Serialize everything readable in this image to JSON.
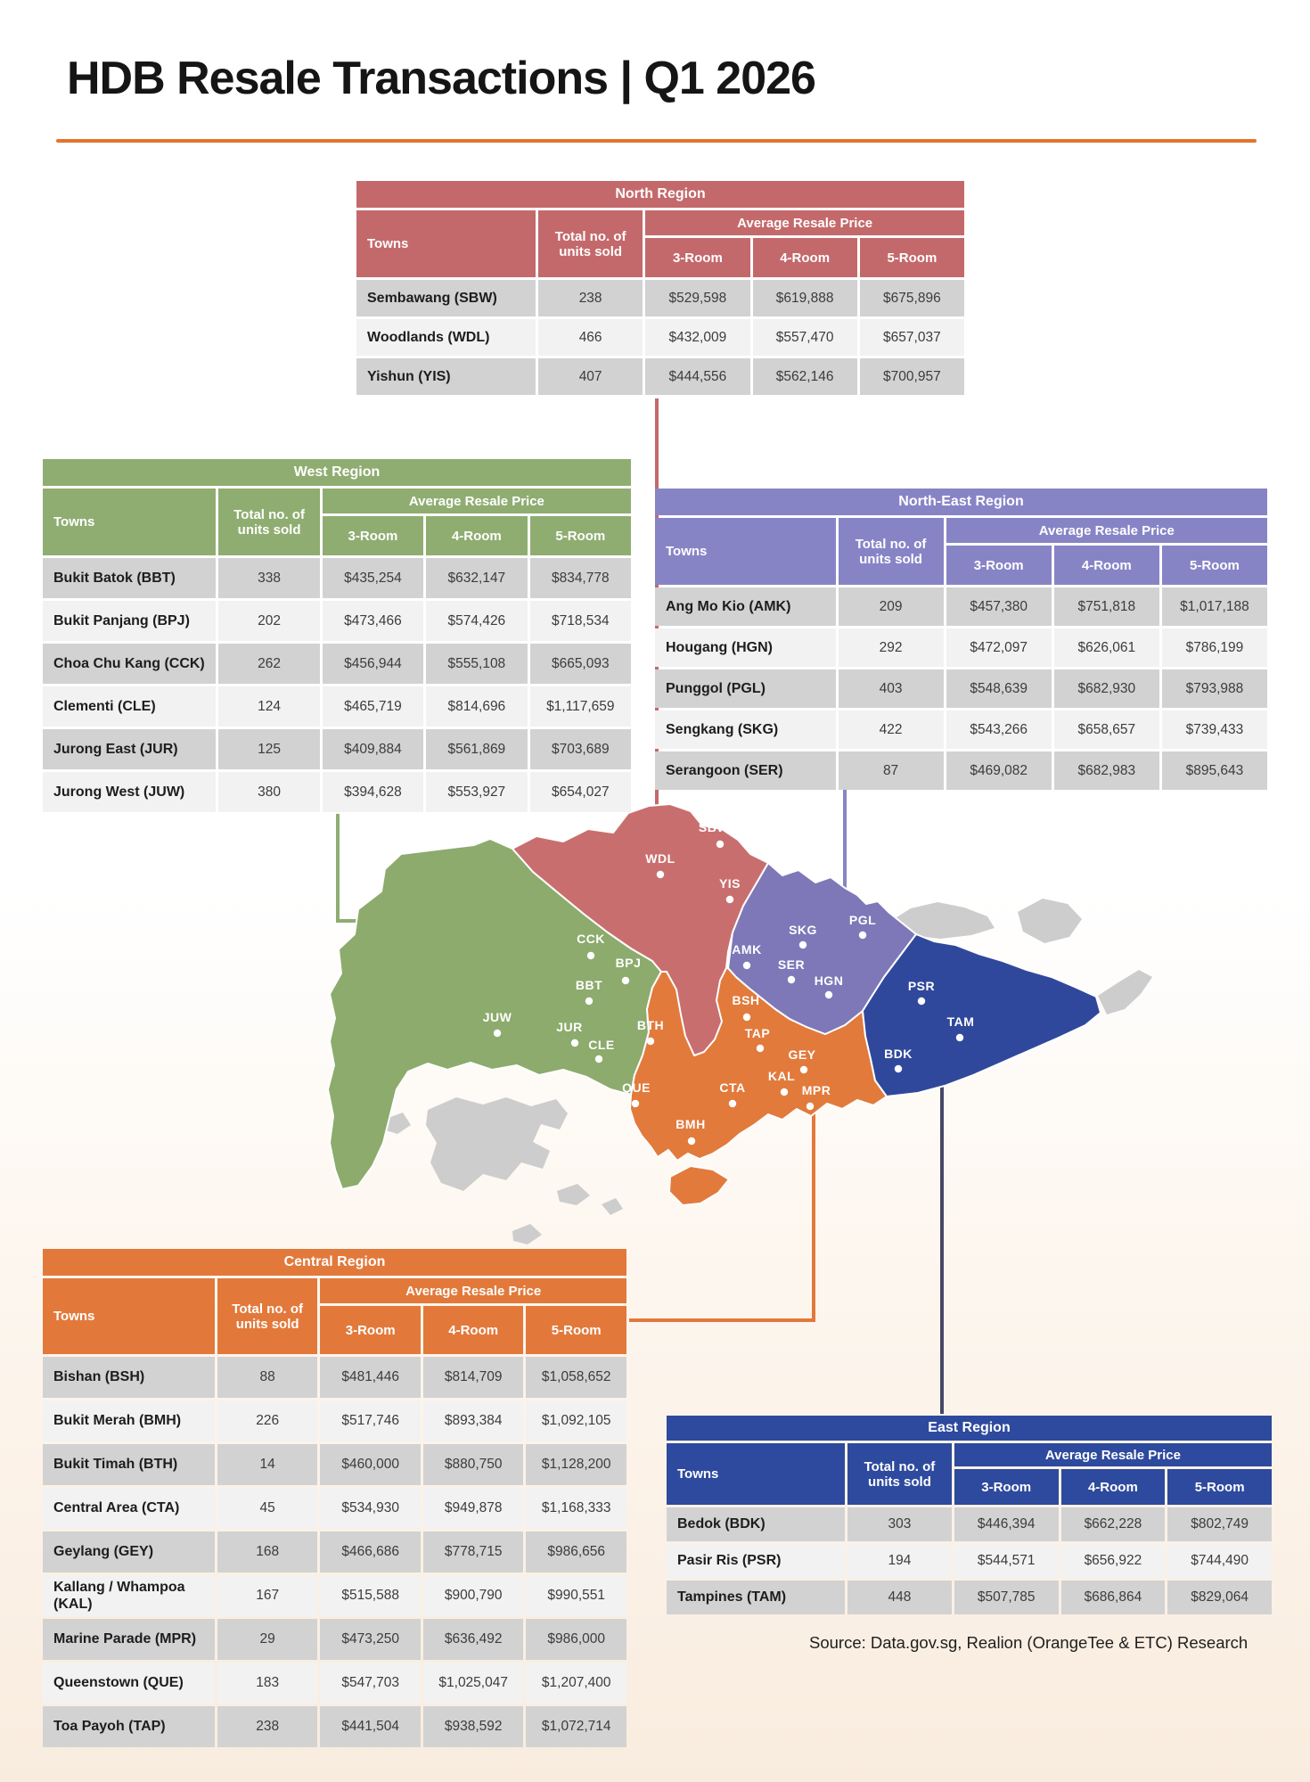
{
  "title": "HDB Resale Transactions | Q1 2026",
  "source": "Source: Data.gov.sg, Realion (OrangeTee & ETC) Research",
  "table_headers": {
    "towns": "Towns",
    "total": "Total no. of units sold",
    "avg": "Average Resale Price",
    "r3": "3-Room",
    "r4": "4-Room",
    "r5": "5-Room"
  },
  "regions": {
    "north": {
      "name": "North Region",
      "color": "#c4696b",
      "rows": [
        {
          "town": "Sembawang (SBW)",
          "units": "238",
          "r3": "$529,598",
          "r4": "$619,888",
          "r5": "$675,896"
        },
        {
          "town": "Woodlands (WDL)",
          "units": "466",
          "r3": "$432,009",
          "r4": "$557,470",
          "r5": "$657,037"
        },
        {
          "town": "Yishun (YIS)",
          "units": "407",
          "r3": "$444,556",
          "r4": "$562,146",
          "r5": "$700,957"
        }
      ]
    },
    "west": {
      "name": "West Region",
      "color": "#8fad71",
      "rows": [
        {
          "town": "Bukit Batok (BBT)",
          "units": "338",
          "r3": "$435,254",
          "r4": "$632,147",
          "r5": "$834,778"
        },
        {
          "town": "Bukit Panjang (BPJ)",
          "units": "202",
          "r3": "$473,466",
          "r4": "$574,426",
          "r5": "$718,534"
        },
        {
          "town": "Choa Chu Kang (CCK)",
          "units": "262",
          "r3": "$456,944",
          "r4": "$555,108",
          "r5": "$665,093"
        },
        {
          "town": "Clementi (CLE)",
          "units": "124",
          "r3": "$465,719",
          "r4": "$814,696",
          "r5": "$1,117,659"
        },
        {
          "town": "Jurong East (JUR)",
          "units": "125",
          "r3": "$409,884",
          "r4": "$561,869",
          "r5": "$703,689"
        },
        {
          "town": "Jurong West (JUW)",
          "units": "380",
          "r3": "$394,628",
          "r4": "$553,927",
          "r5": "$654,027"
        }
      ]
    },
    "north_east": {
      "name": "North-East Region",
      "color": "#8784c6",
      "rows": [
        {
          "town": "Ang Mo Kio (AMK)",
          "units": "209",
          "r3": "$457,380",
          "r4": "$751,818",
          "r5": "$1,017,188"
        },
        {
          "town": "Hougang (HGN)",
          "units": "292",
          "r3": "$472,097",
          "r4": "$626,061",
          "r5": "$786,199"
        },
        {
          "town": "Punggol (PGL)",
          "units": "403",
          "r3": "$548,639",
          "r4": "$682,930",
          "r5": "$793,988"
        },
        {
          "town": "Sengkang (SKG)",
          "units": "422",
          "r3": "$543,266",
          "r4": "$658,657",
          "r5": "$739,433"
        },
        {
          "town": "Serangoon (SER)",
          "units": "87",
          "r3": "$469,082",
          "r4": "$682,983",
          "r5": "$895,643"
        }
      ]
    },
    "central": {
      "name": "Central Region",
      "color": "#e2793b",
      "rows": [
        {
          "town": "Bishan (BSH)",
          "units": "88",
          "r3": "$481,446",
          "r4": "$814,709",
          "r5": "$1,058,652"
        },
        {
          "town": "Bukit Merah (BMH)",
          "units": "226",
          "r3": "$517,746",
          "r4": "$893,384",
          "r5": "$1,092,105"
        },
        {
          "town": "Bukit Timah (BTH)",
          "units": "14",
          "r3": "$460,000",
          "r4": "$880,750",
          "r5": "$1,128,200"
        },
        {
          "town": "Central Area (CTA)",
          "units": "45",
          "r3": "$534,930",
          "r4": "$949,878",
          "r5": "$1,168,333"
        },
        {
          "town": "Geylang (GEY)",
          "units": "168",
          "r3": "$466,686",
          "r4": "$778,715",
          "r5": "$986,656"
        },
        {
          "town": "Kallang / Whampoa (KAL)",
          "units": "167",
          "r3": "$515,588",
          "r4": "$900,790",
          "r5": "$990,551"
        },
        {
          "town": "Marine Parade (MPR)",
          "units": "29",
          "r3": "$473,250",
          "r4": "$636,492",
          "r5": "$986,000"
        },
        {
          "town": "Queenstown (QUE)",
          "units": "183",
          "r3": "$547,703",
          "r4": "$1,025,047",
          "r5": "$1,207,400"
        },
        {
          "town": "Toa Payoh (TAP)",
          "units": "238",
          "r3": "$441,504",
          "r4": "$938,592",
          "r5": "$1,072,714"
        }
      ]
    },
    "east": {
      "name": "East Region",
      "color": "#2e4a9e",
      "rows": [
        {
          "town": "Bedok (BDK)",
          "units": "303",
          "r3": "$446,394",
          "r4": "$662,228",
          "r5": "$802,749"
        },
        {
          "town": "Pasir Ris (PSR)",
          "units": "194",
          "r3": "$544,571",
          "r4": "$656,922",
          "r5": "$744,490"
        },
        {
          "town": "Tampines (TAM)",
          "units": "448",
          "r3": "$507,785",
          "r4": "$686,864",
          "r5": "$829,064"
        }
      ]
    }
  },
  "map": {
    "region_colors": {
      "north": "#c96e6e",
      "west": "#8cab6d",
      "north_east": "#7e78b8",
      "central": "#e27a3c",
      "east": "#30489c",
      "non_hdb": "#cdcdcd"
    },
    "markers": [
      {
        "code": "SBW",
        "dot": [
          528,
          47
        ],
        "label": [
          521,
          33
        ]
      },
      {
        "code": "WDL",
        "dot": [
          461,
          81
        ],
        "label": [
          461,
          68
        ]
      },
      {
        "code": "YIS",
        "dot": [
          539,
          109
        ],
        "label": [
          539,
          96
        ]
      },
      {
        "code": "CCK",
        "dot": [
          383,
          172
        ],
        "label": [
          383,
          158
        ]
      },
      {
        "code": "BPJ",
        "dot": [
          422,
          200
        ],
        "label": [
          425,
          185
        ]
      },
      {
        "code": "BBT",
        "dot": [
          381,
          223
        ],
        "label": [
          381,
          210
        ]
      },
      {
        "code": "JUW",
        "dot": [
          278,
          259
        ],
        "label": [
          278,
          246
        ]
      },
      {
        "code": "JUR",
        "dot": [
          365,
          270
        ],
        "label": [
          359,
          257
        ]
      },
      {
        "code": "CLE",
        "dot": [
          392,
          288
        ],
        "label": [
          395,
          277
        ]
      },
      {
        "code": "AMK",
        "dot": [
          558,
          183
        ],
        "label": [
          558,
          170
        ]
      },
      {
        "code": "SKG",
        "dot": [
          621,
          160
        ],
        "label": [
          621,
          148
        ]
      },
      {
        "code": "PGL",
        "dot": [
          688,
          149
        ],
        "label": [
          688,
          137
        ]
      },
      {
        "code": "SER",
        "dot": [
          608,
          199
        ],
        "label": [
          608,
          187
        ]
      },
      {
        "code": "HGN",
        "dot": [
          650,
          216
        ],
        "label": [
          650,
          205
        ]
      },
      {
        "code": "PSR",
        "dot": [
          754,
          223
        ],
        "label": [
          754,
          211
        ]
      },
      {
        "code": "TAM",
        "dot": [
          797,
          264
        ],
        "label": [
          798,
          251
        ]
      },
      {
        "code": "BDK",
        "dot": [
          728,
          299
        ],
        "label": [
          728,
          287
        ]
      },
      {
        "code": "BSH",
        "dot": [
          558,
          241
        ],
        "label": [
          557,
          227
        ]
      },
      {
        "code": "BTH",
        "dot": [
          450,
          268
        ],
        "label": [
          450,
          255
        ]
      },
      {
        "code": "TAP",
        "dot": [
          573,
          276
        ],
        "label": [
          570,
          264
        ]
      },
      {
        "code": "GEY",
        "dot": [
          622,
          300
        ],
        "label": [
          620,
          288
        ]
      },
      {
        "code": "KAL",
        "dot": [
          600,
          325
        ],
        "label": [
          597,
          312
        ]
      },
      {
        "code": "MPR",
        "dot": [
          629,
          341
        ],
        "label": [
          636,
          328
        ]
      },
      {
        "code": "QUE",
        "dot": [
          433,
          338
        ],
        "label": [
          434,
          325
        ]
      },
      {
        "code": "CTA",
        "dot": [
          542,
          338
        ],
        "label": [
          542,
          325
        ]
      },
      {
        "code": "BMH",
        "dot": [
          496,
          380
        ],
        "label": [
          495,
          366
        ]
      }
    ]
  }
}
